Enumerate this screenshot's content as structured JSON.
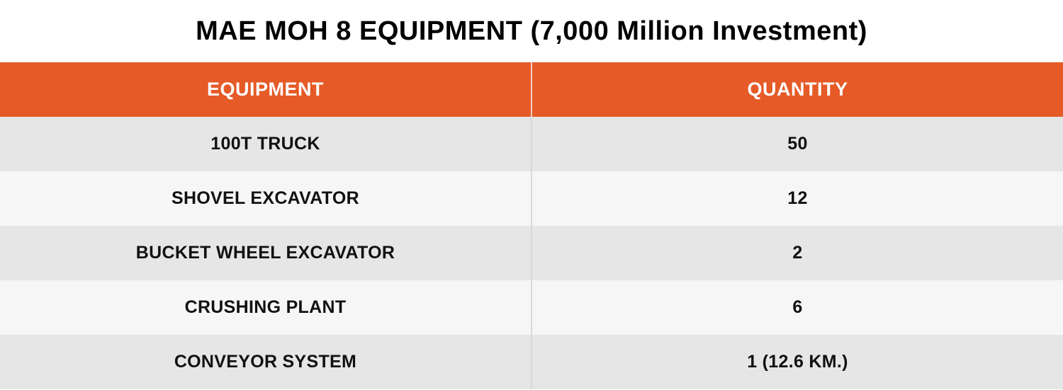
{
  "title": "MAE MOH 8 EQUIPMENT (7,000 Million Investment)",
  "table": {
    "headers": [
      "EQUIPMENT",
      "QUANTITY"
    ],
    "rows": [
      {
        "equipment": "100T TRUCK",
        "quantity": "50"
      },
      {
        "equipment": "SHOVEL EXCAVATOR",
        "quantity": "12"
      },
      {
        "equipment": "BUCKET WHEEL EXCAVATOR",
        "quantity": "2"
      },
      {
        "equipment": "CRUSHING PLANT",
        "quantity": "6"
      },
      {
        "equipment": "CONVEYOR SYSTEM",
        "quantity": "1 (12.6 KM.)"
      }
    ]
  },
  "colors": {
    "header_bg": "#e55a27",
    "header_text": "#ffffff",
    "row_odd": "#e6e6e6",
    "row_even": "#f6f6f6"
  }
}
